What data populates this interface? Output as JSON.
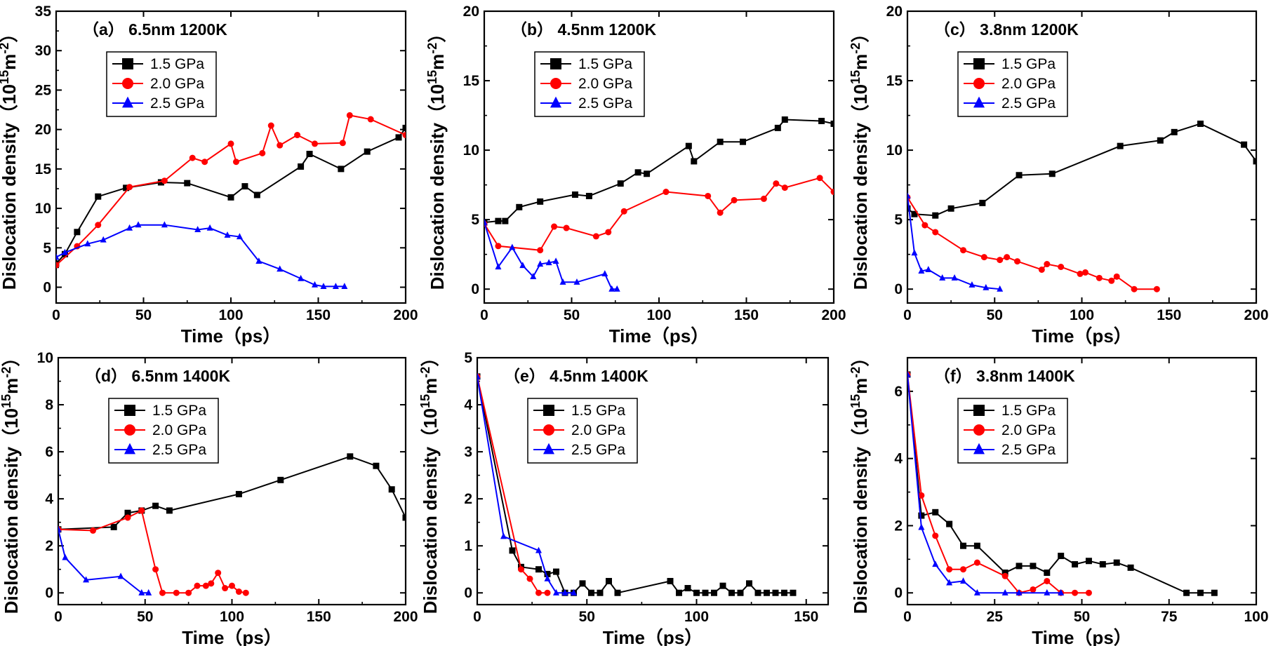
{
  "chart_data": [
    {
      "type": "line",
      "title": "（a） 6.5nm 1200K",
      "xlabel": "Time（ps）",
      "ylabel": "Dislocation density（10",
      "ylabel_sup1": "15",
      "ylabel_mid": "m",
      "ylabel_sup2": "-2",
      "ylabel_end": "）",
      "xlim": [
        0,
        200
      ],
      "ylim": [
        -2,
        35
      ],
      "xticks": [
        0,
        50,
        100,
        150,
        200
      ],
      "yticks": [
        0,
        5,
        10,
        15,
        20,
        25,
        30,
        35
      ],
      "legend_position": "top-left",
      "series": [
        {
          "name": "1.5 GPa",
          "color": "#000000",
          "marker": "square",
          "x": [
            0,
            5,
            12,
            24,
            40,
            60,
            75,
            100,
            108,
            115,
            140,
            145,
            163,
            178,
            196,
            200
          ],
          "y": [
            3,
            4.2,
            7,
            11.5,
            12.6,
            13.3,
            13.2,
            11.4,
            12.8,
            11.7,
            15.3,
            16.9,
            15.0,
            17.2,
            19.0,
            20.2
          ]
        },
        {
          "name": "2.0 GPa",
          "color": "#ff0000",
          "marker": "circle",
          "x": [
            0,
            12,
            24,
            42,
            62,
            78,
            85,
            100,
            103,
            118,
            123,
            128,
            138,
            148,
            164,
            168,
            180,
            200
          ],
          "y": [
            2.8,
            5.2,
            7.9,
            12.7,
            13.5,
            16.4,
            15.9,
            18.2,
            15.9,
            17.0,
            20.5,
            18.0,
            19.3,
            18.2,
            18.3,
            21.8,
            21.3,
            19.3
          ]
        },
        {
          "name": "2.5 GPa",
          "color": "#0000ff",
          "marker": "triangle",
          "x": [
            0,
            5,
            18,
            27,
            42,
            47,
            62,
            81,
            88,
            98,
            105,
            116,
            128,
            140,
            148,
            153,
            160,
            165
          ],
          "y": [
            3.8,
            4.4,
            5.5,
            6.0,
            7.5,
            7.9,
            7.9,
            7.3,
            7.5,
            6.6,
            6.4,
            3.3,
            2.3,
            1.1,
            0.3,
            0.1,
            0.1,
            0.1
          ]
        }
      ]
    },
    {
      "type": "line",
      "title": "（b） 4.5nm 1200K",
      "xlabel": "Time（ps）",
      "ylabel": "Dislocation density（10",
      "ylabel_sup1": "15",
      "ylabel_mid": "m",
      "ylabel_sup2": "-2",
      "ylabel_end": "）",
      "xlim": [
        0,
        200
      ],
      "ylim": [
        -1,
        20
      ],
      "xticks": [
        0,
        50,
        100,
        150,
        200
      ],
      "yticks": [
        0,
        5,
        10,
        15,
        20
      ],
      "legend_position": "top-left",
      "series": [
        {
          "name": "1.5 GPa",
          "color": "#000000",
          "marker": "square",
          "x": [
            0,
            8,
            12,
            20,
            32,
            52,
            60,
            78,
            88,
            93,
            117,
            120,
            135,
            148,
            168,
            172,
            193,
            200
          ],
          "y": [
            4.8,
            4.9,
            4.9,
            5.9,
            6.3,
            6.8,
            6.7,
            7.6,
            8.4,
            8.3,
            10.3,
            9.2,
            10.6,
            10.6,
            11.6,
            12.2,
            12.1,
            11.9
          ]
        },
        {
          "name": "2.0 GPa",
          "color": "#ff0000",
          "marker": "circle",
          "x": [
            0,
            8,
            32,
            40,
            47,
            64,
            71,
            80,
            104,
            128,
            135,
            143,
            160,
            167,
            172,
            192,
            200
          ],
          "y": [
            4.7,
            3.1,
            2.8,
            4.5,
            4.4,
            3.8,
            4.1,
            5.6,
            7.0,
            6.7,
            5.5,
            6.4,
            6.5,
            7.6,
            7.3,
            8.0,
            7.0
          ]
        },
        {
          "name": "2.5 GPa",
          "color": "#0000ff",
          "marker": "triangle",
          "x": [
            0,
            8,
            16,
            22,
            28,
            32,
            37,
            41,
            45,
            53,
            69,
            73,
            76
          ],
          "y": [
            4.8,
            1.6,
            3.0,
            1.7,
            0.9,
            1.8,
            1.9,
            2.0,
            0.5,
            0.5,
            1.1,
            0.0,
            0.0
          ]
        }
      ]
    },
    {
      "type": "line",
      "title": "（c） 3.8nm 1200K",
      "xlabel": "Time（ps）",
      "ylabel": "Dislocation density（10",
      "ylabel_sup1": "15",
      "ylabel_mid": "m",
      "ylabel_sup2": "-2",
      "ylabel_end": "）",
      "xlim": [
        0,
        200
      ],
      "ylim": [
        -1,
        20
      ],
      "xticks": [
        0,
        50,
        100,
        150,
        200
      ],
      "yticks": [
        0,
        5,
        10,
        15,
        20
      ],
      "legend_position": "top-left",
      "series": [
        {
          "name": "1.5 GPa",
          "color": "#000000",
          "marker": "square",
          "x": [
            0,
            4,
            16,
            25,
            43,
            64,
            83,
            122,
            145,
            153,
            168,
            193,
            200
          ],
          "y": [
            5.8,
            5.4,
            5.3,
            5.8,
            6.2,
            8.2,
            8.3,
            10.3,
            10.7,
            11.3,
            11.9,
            10.4,
            9.2
          ]
        },
        {
          "name": "2.0 GPa",
          "color": "#ff0000",
          "marker": "circle",
          "x": [
            0,
            10,
            16,
            32,
            44,
            53,
            57,
            63,
            77,
            80,
            88,
            99,
            102,
            110,
            117,
            120,
            130,
            143
          ],
          "y": [
            6.6,
            4.6,
            4.1,
            2.8,
            2.3,
            2.1,
            2.3,
            2.0,
            1.4,
            1.8,
            1.6,
            1.1,
            1.2,
            0.8,
            0.6,
            0.9,
            0.0,
            0.0
          ]
        },
        {
          "name": "2.5 GPa",
          "color": "#0000ff",
          "marker": "triangle",
          "x": [
            0,
            4,
            8,
            12,
            20,
            27,
            37,
            45,
            53
          ],
          "y": [
            6.7,
            2.6,
            1.3,
            1.4,
            0.8,
            0.8,
            0.3,
            0.1,
            0.0
          ]
        }
      ]
    },
    {
      "type": "line",
      "title": "（d） 6.5nm 1400K",
      "xlabel": "Time（ps）",
      "ylabel": "Dislocation density（10",
      "ylabel_sup1": "15",
      "ylabel_mid": "m",
      "ylabel_sup2": "-2",
      "ylabel_end": "）",
      "xlim": [
        0,
        200
      ],
      "ylim": [
        -0.5,
        10
      ],
      "xticks": [
        0,
        50,
        100,
        150,
        200
      ],
      "yticks": [
        0,
        2,
        4,
        6,
        8,
        10
      ],
      "legend_position": "top-left",
      "series": [
        {
          "name": "1.5 GPa",
          "color": "#000000",
          "marker": "square",
          "x": [
            0,
            32,
            40,
            48,
            56,
            64,
            104,
            128,
            168,
            183,
            192,
            200
          ],
          "y": [
            2.7,
            2.8,
            3.4,
            3.5,
            3.7,
            3.5,
            4.2,
            4.8,
            5.8,
            5.4,
            4.4,
            3.2
          ]
        },
        {
          "name": "2.0 GPa",
          "color": "#ff0000",
          "marker": "circle",
          "x": [
            0,
            20,
            40,
            48,
            56,
            60,
            68,
            75,
            80,
            85,
            88,
            92,
            96,
            100,
            104,
            108
          ],
          "y": [
            2.7,
            2.65,
            3.2,
            3.5,
            1.0,
            0.0,
            0.0,
            0.0,
            0.3,
            0.3,
            0.4,
            0.85,
            0.2,
            0.3,
            0.05,
            0.0
          ]
        },
        {
          "name": "2.5 GPa",
          "color": "#0000ff",
          "marker": "triangle",
          "x": [
            0,
            4,
            16,
            36,
            48,
            52
          ],
          "y": [
            2.7,
            1.5,
            0.55,
            0.7,
            0.0,
            0.0
          ]
        }
      ]
    },
    {
      "type": "line",
      "title": "（e） 4.5nm 1400K",
      "xlabel": "Time（ps）",
      "ylabel": "Dislocation density（10",
      "ylabel_sup1": "15",
      "ylabel_mid": "m",
      "ylabel_sup2": "-2",
      "ylabel_end": "）",
      "xlim": [
        0,
        160
      ],
      "ylim": [
        -0.25,
        5
      ],
      "xticks": [
        0,
        50,
        100,
        150
      ],
      "yticks": [
        0,
        1,
        2,
        3,
        4,
        5
      ],
      "legend_position": "top-left",
      "series": [
        {
          "name": "1.5 GPa",
          "color": "#000000",
          "marker": "square",
          "x": [
            0,
            16,
            20,
            28,
            32,
            36,
            40,
            44,
            48,
            52,
            56,
            60,
            64,
            88,
            92,
            96,
            100,
            104,
            108,
            112,
            116,
            120,
            124,
            128,
            132,
            136,
            140,
            144
          ],
          "y": [
            4.6,
            0.9,
            0.55,
            0.5,
            0.4,
            0.45,
            0.0,
            0.0,
            0.2,
            0.0,
            0.0,
            0.25,
            0.0,
            0.25,
            0.0,
            0.1,
            0.0,
            0.0,
            0.0,
            0.15,
            0.0,
            0.0,
            0.2,
            0.0,
            0.0,
            0.0,
            0.0,
            0.0
          ]
        },
        {
          "name": "2.0 GPa",
          "color": "#ff0000",
          "marker": "circle",
          "x": [
            0,
            20,
            24,
            28,
            32
          ],
          "y": [
            4.6,
            0.5,
            0.3,
            0.0,
            0.0
          ]
        },
        {
          "name": "2.5 GPa",
          "color": "#0000ff",
          "marker": "triangle",
          "x": [
            0,
            12,
            28,
            32,
            36,
            40,
            44
          ],
          "y": [
            4.6,
            1.2,
            0.9,
            0.3,
            0.0,
            0.0,
            0.0
          ]
        }
      ]
    },
    {
      "type": "line",
      "title": "（f） 3.8nm 1400K",
      "xlabel": "Time（ps）",
      "ylabel": "Dislocation density（10",
      "ylabel_sup1": "15",
      "ylabel_mid": "m",
      "ylabel_sup2": "-2",
      "ylabel_end": "）",
      "xlim": [
        0,
        100
      ],
      "ylim": [
        -0.35,
        7
      ],
      "xticks": [
        0,
        25,
        50,
        75,
        100
      ],
      "yticks": [
        0,
        2,
        4,
        6
      ],
      "legend_position": "top-left",
      "series": [
        {
          "name": "1.5 GPa",
          "color": "#000000",
          "marker": "square",
          "x": [
            0,
            4,
            8,
            12,
            16,
            20,
            28,
            32,
            36,
            40,
            44,
            48,
            52,
            56,
            60,
            64,
            80,
            84,
            88
          ],
          "y": [
            6.5,
            2.3,
            2.4,
            2.05,
            1.4,
            1.4,
            0.6,
            0.8,
            0.8,
            0.6,
            1.1,
            0.85,
            0.95,
            0.85,
            0.9,
            0.75,
            0.0,
            0.0,
            0.0
          ]
        },
        {
          "name": "2.0 GPa",
          "color": "#ff0000",
          "marker": "circle",
          "x": [
            0,
            4,
            8,
            12,
            16,
            20,
            28,
            32,
            36,
            40,
            44,
            48,
            52
          ],
          "y": [
            6.5,
            2.9,
            1.7,
            0.7,
            0.7,
            0.9,
            0.5,
            0.0,
            0.1,
            0.35,
            0.0,
            0.0,
            0.0
          ]
        },
        {
          "name": "2.5 GPa",
          "color": "#0000ff",
          "marker": "triangle",
          "x": [
            0,
            4,
            8,
            12,
            16,
            20,
            28,
            32,
            40,
            44
          ],
          "y": [
            6.5,
            1.95,
            0.85,
            0.3,
            0.35,
            0.0,
            0.0,
            0.0,
            0.0,
            0.0
          ]
        }
      ]
    }
  ]
}
